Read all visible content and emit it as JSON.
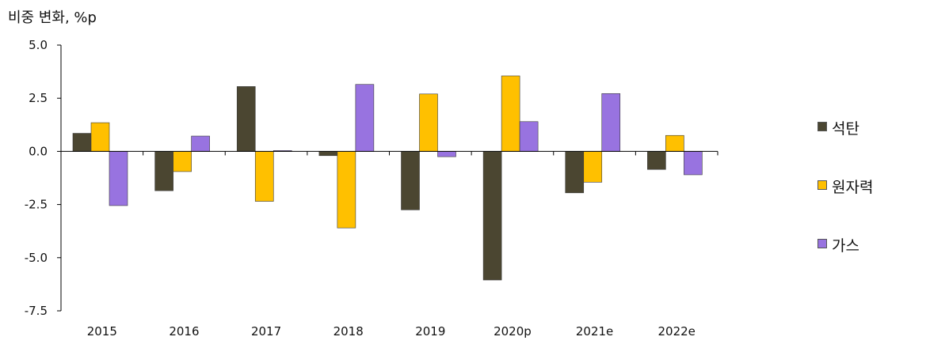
{
  "chart_data": {
    "type": "bar",
    "ylabel": "비중 변화, %p",
    "categories": [
      "2015",
      "2016",
      "2017",
      "2018",
      "2019",
      "2020p",
      "2021e",
      "2022e"
    ],
    "series": [
      {
        "name": "석탄",
        "color": "#4b4631",
        "values": [
          0.85,
          -1.85,
          3.05,
          -0.2,
          -2.75,
          -6.05,
          -1.95,
          -0.85
        ]
      },
      {
        "name": "원자력",
        "color": "#ffc000",
        "values": [
          1.35,
          -0.95,
          -2.35,
          -3.6,
          2.7,
          3.55,
          -1.45,
          0.75
        ]
      },
      {
        "name": "가스",
        "color": "#9873e0",
        "values": [
          -2.55,
          0.72,
          0.04,
          3.15,
          -0.25,
          1.4,
          2.72,
          -1.1
        ]
      }
    ],
    "yticks": [
      "5.0",
      "2.5",
      "0.0",
      "-2.5",
      "-5.0",
      "-7.5"
    ],
    "ylim": [
      -7.5,
      5.0
    ],
    "legend_position": "right"
  }
}
